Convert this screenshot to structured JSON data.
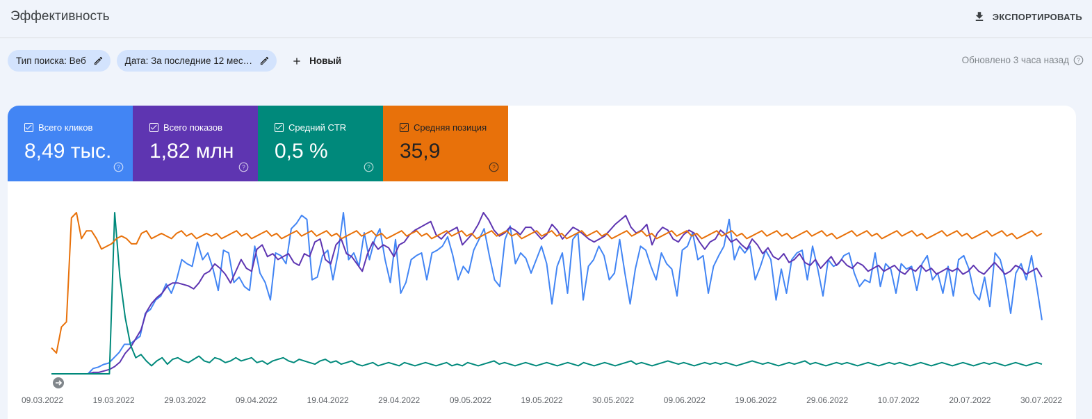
{
  "header": {
    "title": "Эффективность",
    "export_label": "ЭКСПОРТИРОВАТЬ",
    "export_icon": "download-icon"
  },
  "filters": {
    "search_type_label": "Тип поиска: Веб",
    "date_label": "Дата: За последние 12 мес…",
    "new_label": "Новый",
    "updated_label": "Обновлено 3 часа назад"
  },
  "metrics": [
    {
      "label": "Всего кликов",
      "value": "8,49 тыс.",
      "color": "#4285f4",
      "checked": true
    },
    {
      "label": "Всего показов",
      "value": "1,82 млн",
      "color": "#5e35b1",
      "checked": true
    },
    {
      "label": "Средний CTR",
      "value": "0,5 %",
      "color": "#00897b",
      "checked": true
    },
    {
      "label": "Средняя позиция",
      "value": "35,9",
      "color": "#e8710a",
      "checked": true
    }
  ],
  "chart_data": {
    "type": "line",
    "x_tick_labels": [
      "09.03.2022",
      "19.03.2022",
      "29.03.2022",
      "09.04.2022",
      "19.04.2022",
      "29.04.2022",
      "09.05.2022",
      "19.05.2022",
      "30.05.2022",
      "09.06.2022",
      "19.06.2022",
      "29.06.2022",
      "10.07.2022",
      "20.07.2022",
      "30.07.2022"
    ],
    "y_axis": "hidden",
    "grid": false,
    "series": [
      {
        "name": "Всего кликов",
        "color": "#4285f4",
        "values": [
          0,
          0,
          0,
          0,
          0,
          0,
          0,
          0,
          4,
          5,
          7,
          8,
          12,
          16,
          22,
          22,
          25,
          28,
          45,
          48,
          55,
          58,
          67,
          60,
          70,
          85,
          82,
          80,
          98,
          85,
          90,
          78,
          62,
          92,
          90,
          68,
          72,
          65,
          62,
          95,
          75,
          68,
          55,
          90,
          88,
          82,
          108,
          112,
          118,
          115,
          70,
          72,
          88,
          92,
          70,
          90,
          120,
          85,
          90,
          80,
          105,
          85,
          100,
          108,
          85,
          68,
          100,
          60,
          68,
          85,
          88,
          90,
          70,
          90,
          92,
          95,
          102,
          88,
          70,
          80,
          75,
          92,
          100,
          108,
          88,
          70,
          65,
          100,
          110,
          82,
          90,
          86,
          75,
          85,
          95,
          82,
          52,
          80,
          90,
          60,
          100,
          105,
          55,
          80,
          85,
          95,
          88,
          70,
          75,
          100,
          75,
          52,
          78,
          95,
          92,
          80,
          70,
          90,
          82,
          78,
          58,
          92,
          95,
          105,
          85,
          88,
          60,
          80,
          88,
          95,
          115,
          85,
          95,
          90,
          95,
          70,
          80,
          92,
          85,
          55,
          78,
          60,
          85,
          90,
          92,
          70,
          95,
          78,
          58,
          85,
          80,
          82,
          88,
          90,
          75,
          65,
          70,
          68,
          90,
          65,
          82,
          78,
          60,
          82,
          78,
          80,
          62,
          82,
          88,
          70,
          75,
          60,
          80,
          58,
          85,
          88,
          78,
          60,
          55,
          72,
          50,
          90,
          85,
          70,
          45,
          75,
          82,
          70,
          88,
          65,
          40
        ]
      },
      {
        "name": "Всего показов",
        "color": "#5e35b1",
        "values": [
          0,
          0,
          0,
          0,
          0,
          0,
          0,
          0,
          1,
          1,
          2,
          3,
          5,
          8,
          14,
          18,
          24,
          30,
          42,
          48,
          52,
          55,
          60,
          62,
          62,
          61,
          60,
          58,
          62,
          68,
          70,
          75,
          72,
          68,
          62,
          70,
          78,
          72,
          70,
          85,
          88,
          80,
          82,
          78,
          80,
          82,
          76,
          74,
          82,
          80,
          90,
          92,
          78,
          75,
          88,
          92,
          82,
          80,
          75,
          70,
          82,
          90,
          85,
          88,
          86,
          80,
          88,
          90,
          95,
          98,
          100,
          102,
          104,
          95,
          92,
          96,
          98,
          100,
          88,
          92,
          96,
          102,
          110,
          105,
          98,
          94,
          96,
          100,
          98,
          95,
          100,
          100,
          96,
          92,
          95,
          102,
          98,
          92,
          96,
          100,
          98,
          95,
          92,
          90,
          92,
          94,
          98,
          102,
          105,
          108,
          100,
          96,
          98,
          102,
          88,
          96,
          100,
          98,
          92,
          90,
          95,
          98,
          96,
          90,
          85,
          90,
          92,
          98,
          95,
          90,
          92,
          88,
          85,
          92,
          88,
          82,
          86,
          80,
          78,
          82,
          76,
          78,
          82,
          76,
          74,
          78,
          72,
          76,
          80,
          74,
          78,
          74,
          72,
          76,
          74,
          70,
          72,
          74,
          70,
          72,
          74,
          70,
          68,
          72,
          70,
          74,
          70,
          72,
          68,
          70,
          72,
          70,
          72,
          68,
          70,
          74,
          70,
          68,
          72,
          76,
          72,
          68,
          70,
          74,
          72,
          68,
          70,
          72,
          66
        ]
      },
      {
        "name": "Средний CTR",
        "color": "#00897b",
        "values": [
          0,
          0,
          0,
          0,
          0,
          0,
          0,
          0,
          0,
          0,
          0,
          0,
          100,
          60,
          35,
          18,
          10,
          12,
          8,
          5,
          8,
          10,
          6,
          9,
          10,
          8,
          7,
          9,
          11,
          8,
          7,
          10,
          9,
          7,
          8,
          10,
          8,
          9,
          10,
          7,
          8,
          6,
          8,
          9,
          10,
          8,
          7,
          9,
          8,
          7,
          6,
          8,
          9,
          7,
          8,
          6,
          7,
          8,
          6,
          5,
          6,
          7,
          5,
          6,
          7,
          6,
          5,
          7,
          6,
          5,
          6,
          7,
          6,
          5,
          6,
          7,
          5,
          6,
          5,
          7,
          6,
          5,
          6,
          7,
          8,
          6,
          7,
          6,
          5,
          6,
          7,
          6,
          5,
          6,
          7,
          6,
          5,
          6,
          7,
          6,
          5,
          7,
          6,
          5,
          6,
          7,
          6,
          5,
          6,
          7,
          8,
          6,
          7,
          6,
          5,
          6,
          7,
          8,
          7,
          6,
          7,
          6,
          5,
          6,
          7,
          6,
          7,
          6,
          7,
          6,
          5,
          6,
          7,
          8,
          7,
          6,
          7,
          6,
          5,
          6,
          7,
          6,
          7,
          8,
          6,
          7,
          6,
          5,
          6,
          7,
          6,
          7,
          6,
          5,
          6,
          7,
          6,
          5,
          6,
          7,
          6,
          7,
          6,
          5,
          6,
          7,
          6,
          5,
          6,
          7,
          6,
          5,
          6,
          7,
          6,
          5,
          6,
          7,
          6,
          7,
          6,
          5,
          6,
          7,
          6,
          5,
          6,
          7,
          6
        ]
      },
      {
        "name": "Средняя позиция",
        "color": "#e8710a",
        "values": [
          10,
          8,
          18,
          20,
          60,
          62,
          52,
          55,
          55,
          52,
          48,
          49,
          50,
          52,
          53,
          52,
          50,
          50,
          54,
          55,
          52,
          53,
          54,
          53,
          52,
          54,
          55,
          53,
          54,
          52,
          53,
          54,
          53,
          54,
          52,
          53,
          54,
          55,
          53,
          54,
          52,
          53,
          54,
          55,
          53,
          54,
          52,
          53,
          54,
          55,
          53,
          54,
          55,
          53,
          54,
          55,
          53,
          54,
          52,
          53,
          54,
          55,
          53,
          54,
          55,
          53,
          54,
          52,
          53,
          54,
          55,
          53,
          54,
          55,
          53,
          54,
          52,
          53,
          54,
          55,
          53,
          54,
          55,
          53,
          54,
          52,
          53,
          54,
          55,
          53,
          54,
          55,
          53,
          54,
          52,
          53,
          54,
          55,
          53,
          54,
          55,
          53,
          54,
          52,
          53,
          54,
          55,
          53,
          54,
          55,
          53,
          54,
          52,
          53,
          54,
          55,
          53,
          54,
          55,
          53,
          54,
          52,
          53,
          54,
          55,
          53,
          54,
          55,
          53,
          54,
          52,
          53,
          54,
          55,
          53,
          54,
          55,
          53,
          54,
          52,
          53,
          54,
          55,
          53,
          54,
          55,
          53,
          54,
          52,
          53,
          54,
          55,
          53,
          54,
          55,
          53,
          54,
          52,
          53,
          54,
          55,
          53,
          54,
          55,
          53,
          54,
          52,
          53,
          54,
          55,
          53,
          54,
          55,
          53,
          54,
          52,
          53,
          54,
          55,
          53,
          54,
          55,
          53,
          54,
          52,
          53,
          54,
          55,
          53,
          54,
          55,
          53,
          54,
          52,
          53,
          54,
          55,
          53,
          54
        ]
      }
    ]
  }
}
